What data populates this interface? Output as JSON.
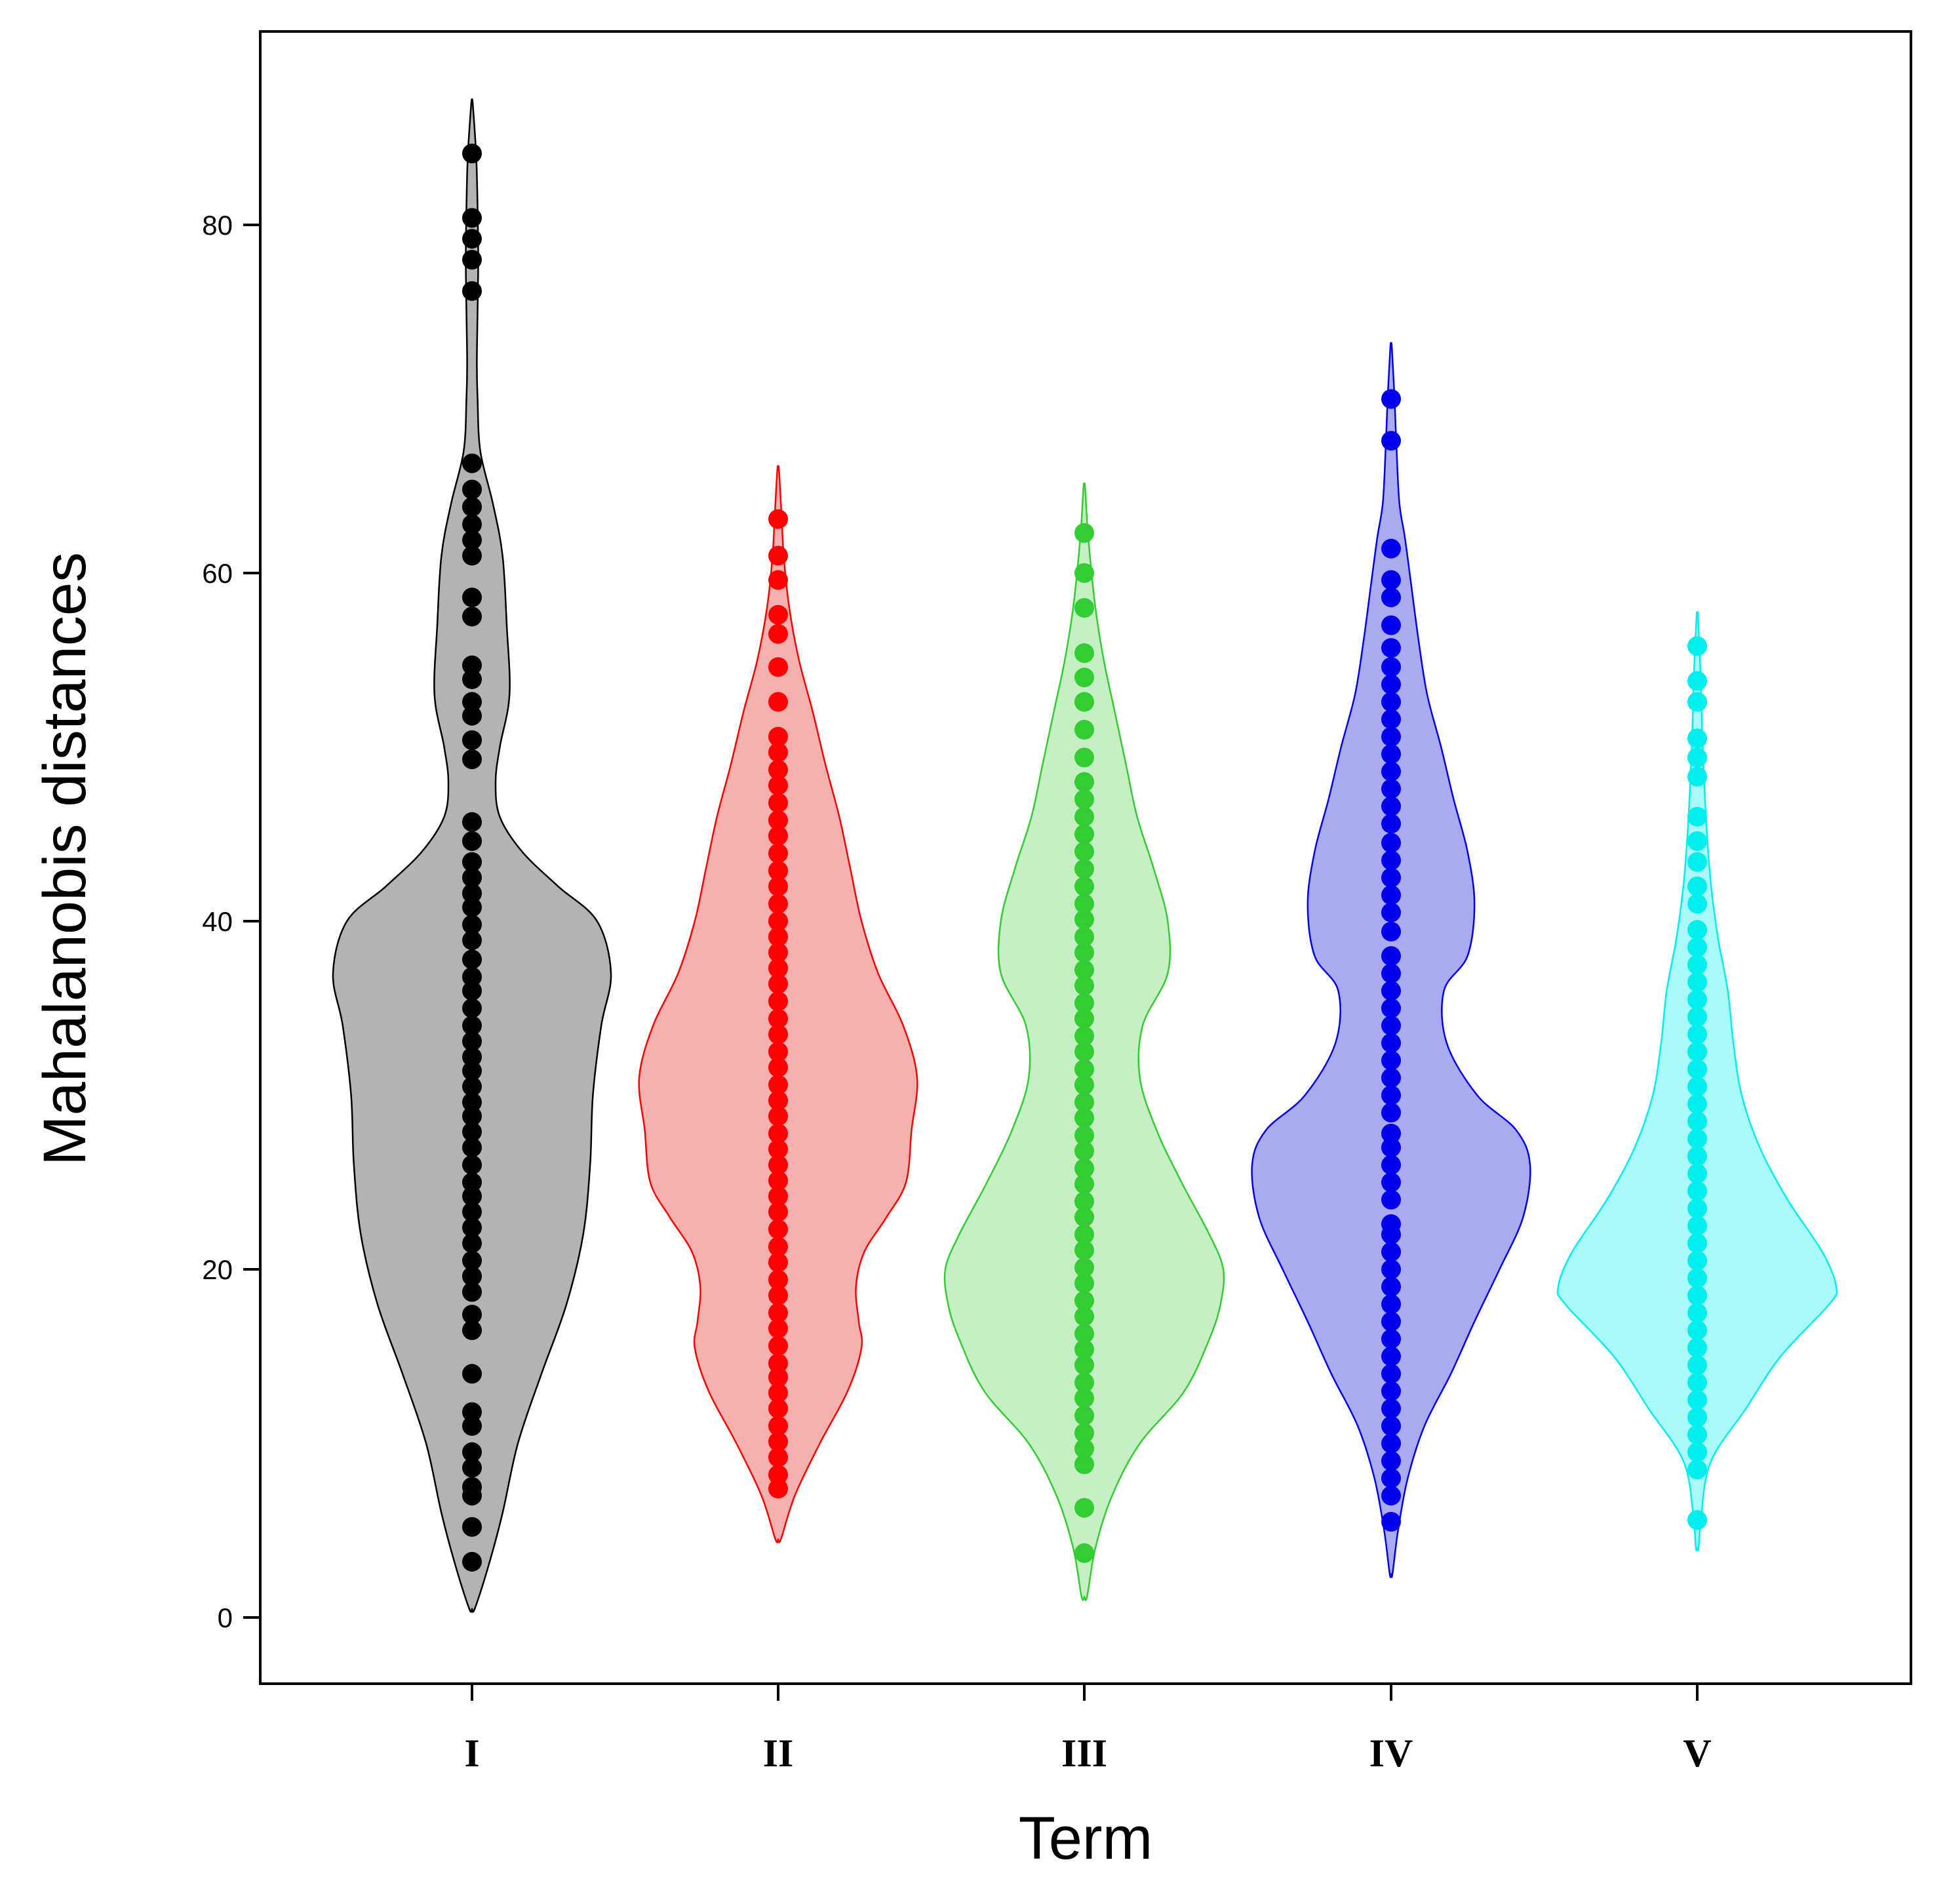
{
  "chart_data": {
    "type": "violin",
    "title": "",
    "xlabel": "Term",
    "ylabel": "Mahalanobis distances",
    "ylim": [
      -4,
      90
    ],
    "yticks": [
      0,
      20,
      40,
      60,
      80
    ],
    "categories": [
      "I",
      "II",
      "III",
      "IV",
      "V"
    ],
    "series": [
      {
        "name": "I",
        "color": "#000000",
        "fill": "#b3b3b3",
        "min": 0.5,
        "max": 87,
        "density": [
          [
            0.5,
            0.02
          ],
          [
            3,
            0.12
          ],
          [
            6,
            0.22
          ],
          [
            10,
            0.33
          ],
          [
            14,
            0.5
          ],
          [
            18,
            0.68
          ],
          [
            22,
            0.8
          ],
          [
            26,
            0.85
          ],
          [
            30,
            0.87
          ],
          [
            34,
            0.93
          ],
          [
            37,
            1.0
          ],
          [
            40,
            0.9
          ],
          [
            42,
            0.62
          ],
          [
            44,
            0.36
          ],
          [
            46,
            0.2
          ],
          [
            48,
            0.17
          ],
          [
            50,
            0.2
          ],
          [
            53,
            0.27
          ],
          [
            57,
            0.25
          ],
          [
            61,
            0.22
          ],
          [
            64,
            0.15
          ],
          [
            67,
            0.06
          ],
          [
            70,
            0.04
          ],
          [
            72,
            0.035
          ],
          [
            75,
            0.04
          ],
          [
            78,
            0.045
          ],
          [
            81,
            0.04
          ],
          [
            84,
            0.03
          ],
          [
            87,
            0.005
          ]
        ],
        "points": [
          3.2,
          5.2,
          7,
          7.5,
          8.6,
          9.5,
          11,
          11.8,
          14,
          16.5,
          17.4,
          18.7,
          19.6,
          20.5,
          21.5,
          22.4,
          23.3,
          24.2,
          25,
          26,
          27,
          27.9,
          28.8,
          29.6,
          30.5,
          31.4,
          32.2,
          33.1,
          34,
          35,
          36,
          36.8,
          37.8,
          38.9,
          39.8,
          40.8,
          41.6,
          42.5,
          43.4,
          44.6,
          45.7,
          49.3,
          50.4,
          51.8,
          52.6,
          53.9,
          54.7,
          57.5,
          58.6,
          61,
          61.9,
          62.8,
          63.8,
          64.8,
          66.3,
          76.2,
          78,
          79.2,
          80.4,
          84.1
        ]
      },
      {
        "name": "II",
        "color": "#ff0000",
        "fill": "#f7b0b0",
        "min": 4.5,
        "max": 66,
        "density": [
          [
            4.5,
            0.02
          ],
          [
            7,
            0.12
          ],
          [
            10,
            0.3
          ],
          [
            13,
            0.5
          ],
          [
            15.5,
            0.6
          ],
          [
            17,
            0.58
          ],
          [
            19,
            0.56
          ],
          [
            21,
            0.62
          ],
          [
            23,
            0.78
          ],
          [
            25,
            0.92
          ],
          [
            28,
            0.96
          ],
          [
            31,
            1.0
          ],
          [
            34,
            0.9
          ],
          [
            37,
            0.72
          ],
          [
            40,
            0.6
          ],
          [
            43,
            0.52
          ],
          [
            46,
            0.44
          ],
          [
            49,
            0.34
          ],
          [
            52,
            0.25
          ],
          [
            55,
            0.15
          ],
          [
            58,
            0.08
          ],
          [
            61,
            0.04
          ],
          [
            64,
            0.02
          ],
          [
            66,
            0.005
          ]
        ],
        "points": [
          7.4,
          8.2,
          9.2,
          10.1,
          11,
          12,
          12.9,
          13.8,
          14.6,
          15.6,
          16.6,
          17.5,
          18.5,
          19.4,
          20.4,
          21.3,
          22.3,
          23.3,
          24.2,
          25.1,
          26,
          26.9,
          27.8,
          28.8,
          29.7,
          30.6,
          31.6,
          32.5,
          33.5,
          34.4,
          35.4,
          36.4,
          37.3,
          38.2,
          39.1,
          40,
          41,
          42,
          42.9,
          43.9,
          44.9,
          45.8,
          46.8,
          47.8,
          48.7,
          49.7,
          50.6,
          52.6,
          54.6,
          56.5,
          57.6,
          59.6,
          61,
          63.1
        ]
      },
      {
        "name": "III",
        "color": "#33cc33",
        "fill": "#c4f0c4",
        "min": 1.2,
        "max": 65,
        "density": [
          [
            1.2,
            0.02
          ],
          [
            4,
            0.08
          ],
          [
            7,
            0.2
          ],
          [
            10,
            0.4
          ],
          [
            13,
            0.72
          ],
          [
            16,
            0.9
          ],
          [
            18,
            0.98
          ],
          [
            20,
            1.0
          ],
          [
            22,
            0.9
          ],
          [
            25,
            0.7
          ],
          [
            28,
            0.52
          ],
          [
            31,
            0.4
          ],
          [
            34,
            0.42
          ],
          [
            37,
            0.6
          ],
          [
            40,
            0.6
          ],
          [
            43,
            0.5
          ],
          [
            46,
            0.38
          ],
          [
            49,
            0.3
          ],
          [
            52,
            0.22
          ],
          [
            55,
            0.14
          ],
          [
            58,
            0.08
          ],
          [
            61,
            0.04
          ],
          [
            63,
            0.02
          ],
          [
            65,
            0.005
          ]
        ],
        "points": [
          3.7,
          6.3,
          8.8,
          9.7,
          10.6,
          11.6,
          12.6,
          13.5,
          14.5,
          15.4,
          16.3,
          17.3,
          18.2,
          19.2,
          20.1,
          21.1,
          22,
          23,
          23.9,
          24.9,
          25.8,
          26.8,
          27.7,
          28.7,
          29.6,
          30.6,
          31.5,
          32.5,
          33.4,
          34.4,
          35.3,
          36.3,
          37.2,
          38.2,
          39.1,
          40.1,
          41,
          42,
          43,
          44,
          45,
          46,
          47,
          48,
          49.4,
          51,
          52.6,
          54,
          55.4,
          58,
          60,
          62.3
        ]
      },
      {
        "name": "IV",
        "color": "#0000ee",
        "fill": "#aaaaf0",
        "min": 2.5,
        "max": 73,
        "density": [
          [
            2.5,
            0.01
          ],
          [
            5,
            0.05
          ],
          [
            8,
            0.12
          ],
          [
            11,
            0.24
          ],
          [
            14,
            0.43
          ],
          [
            17,
            0.6
          ],
          [
            20,
            0.78
          ],
          [
            23,
            0.95
          ],
          [
            26,
            1.0
          ],
          [
            28,
            0.9
          ],
          [
            30,
            0.62
          ],
          [
            33,
            0.4
          ],
          [
            36,
            0.38
          ],
          [
            38,
            0.55
          ],
          [
            41,
            0.6
          ],
          [
            44,
            0.55
          ],
          [
            47,
            0.45
          ],
          [
            50,
            0.36
          ],
          [
            53,
            0.26
          ],
          [
            56,
            0.2
          ],
          [
            59,
            0.15
          ],
          [
            62,
            0.1
          ],
          [
            64,
            0.06
          ],
          [
            67,
            0.04
          ],
          [
            70,
            0.025
          ],
          [
            73,
            0.005
          ]
        ],
        "points": [
          5.5,
          7,
          8,
          9,
          10,
          11,
          12,
          13,
          14,
          15,
          16,
          17,
          18,
          19,
          20,
          21,
          22,
          22.6,
          24,
          25,
          26,
          27,
          27.8,
          29,
          30,
          31,
          32,
          33,
          34,
          35,
          36,
          37,
          38,
          39.4,
          40.5,
          41.5,
          42.5,
          43.5,
          44.5,
          45.6,
          46.6,
          47.6,
          48.6,
          49.6,
          50.6,
          51.6,
          52.6,
          53.6,
          54.6,
          55.7,
          57,
          58.6,
          59.6,
          61.4,
          67.6,
          70
        ]
      },
      {
        "name": "V",
        "color": "#00eeee",
        "fill": "#aafafa",
        "min": 4,
        "max": 57.5,
        "density": [
          [
            4,
            0.01
          ],
          [
            6,
            0.03
          ],
          [
            9,
            0.1
          ],
          [
            12,
            0.35
          ],
          [
            15,
            0.6
          ],
          [
            18,
            0.95
          ],
          [
            19,
            1.0
          ],
          [
            21,
            0.9
          ],
          [
            24,
            0.65
          ],
          [
            27,
            0.45
          ],
          [
            30,
            0.32
          ],
          [
            33,
            0.26
          ],
          [
            36,
            0.22
          ],
          [
            39,
            0.15
          ],
          [
            42,
            0.1
          ],
          [
            45,
            0.07
          ],
          [
            48,
            0.05
          ],
          [
            51,
            0.035
          ],
          [
            54,
            0.025
          ],
          [
            57.5,
            0.005
          ]
        ],
        "points": [
          5.6,
          8.5,
          9.5,
          10.5,
          11.5,
          12.5,
          13.5,
          14.5,
          15.5,
          16.5,
          17.5,
          18.5,
          19.5,
          20.5,
          21.5,
          22.5,
          23.5,
          24.5,
          25.5,
          26.5,
          27.5,
          28.5,
          29.5,
          30.5,
          31.5,
          32.5,
          33.5,
          34.5,
          35.5,
          36.5,
          37.5,
          38.5,
          39.5,
          41,
          42,
          43.4,
          44.6,
          46,
          48.3,
          49.4,
          50.5,
          52.6,
          53.8,
          55.8
        ]
      }
    ]
  }
}
